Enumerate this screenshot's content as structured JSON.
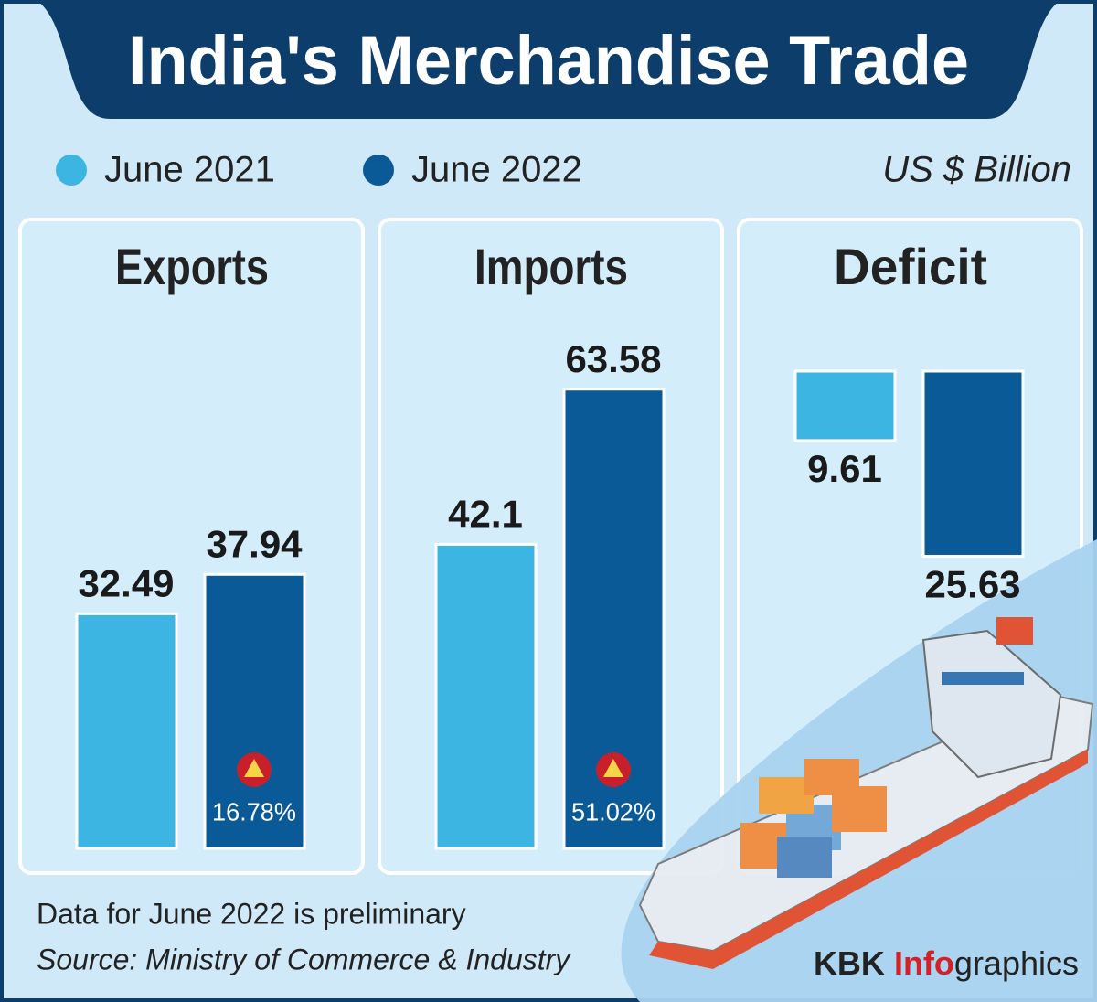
{
  "title": "India's  Merchandise  Trade",
  "legend": [
    {
      "name": "June 2021",
      "color": "#3db5e2"
    },
    {
      "name": "June 2022",
      "color": "#0a5a98"
    }
  ],
  "unit": "US $ Billion",
  "chart_data": [
    {
      "type": "bar",
      "title": "Exports",
      "values": [
        32.49,
        37.94
      ],
      "change": "16.78%"
    },
    {
      "type": "bar",
      "title": "Imports",
      "values": [
        42.1,
        63.58
      ],
      "change": "51.02%"
    },
    {
      "type": "bar",
      "title": "Deficit",
      "values": [
        9.61,
        25.63
      ],
      "direction": "down"
    }
  ],
  "note": "Data for June 2022 is preliminary",
  "source": "Source: Ministry of Commerce & Industry",
  "credit": {
    "brand": "KBK",
    "highlight": "Info",
    "rest": "graphics"
  }
}
